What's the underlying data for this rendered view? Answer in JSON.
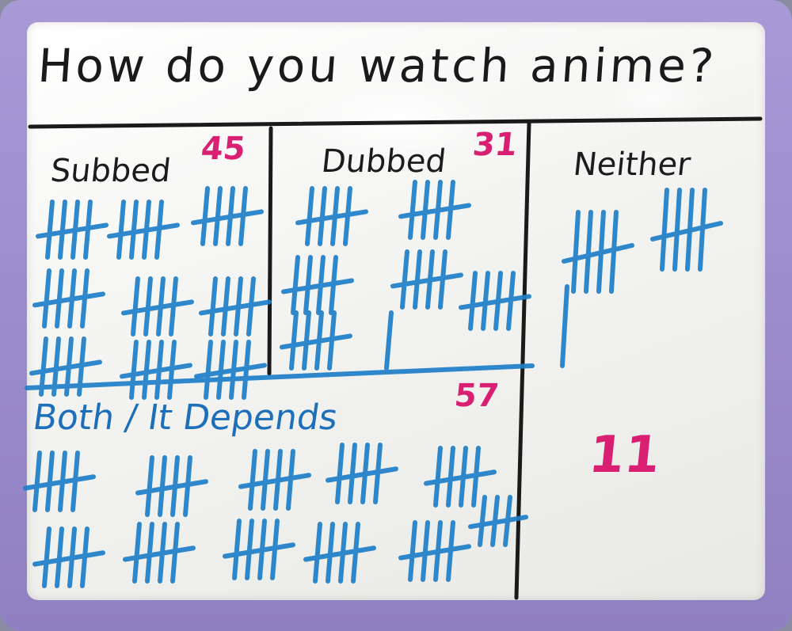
{
  "title": "How do you watch anime?",
  "columns": [
    {
      "label": "Subbed",
      "count": "45"
    },
    {
      "label": "Dubbed",
      "count": "31"
    },
    {
      "label": "Neither",
      "count": "11"
    }
  ],
  "both": {
    "label": "Both / It Depends",
    "count": "57"
  },
  "colors": {
    "marker_black": "#1a1a1a",
    "marker_pink": "#d81f72",
    "marker_blue": "#1e7fc8",
    "frame_purple": "#9b8ccd",
    "board_white": "#f3f3f1"
  }
}
